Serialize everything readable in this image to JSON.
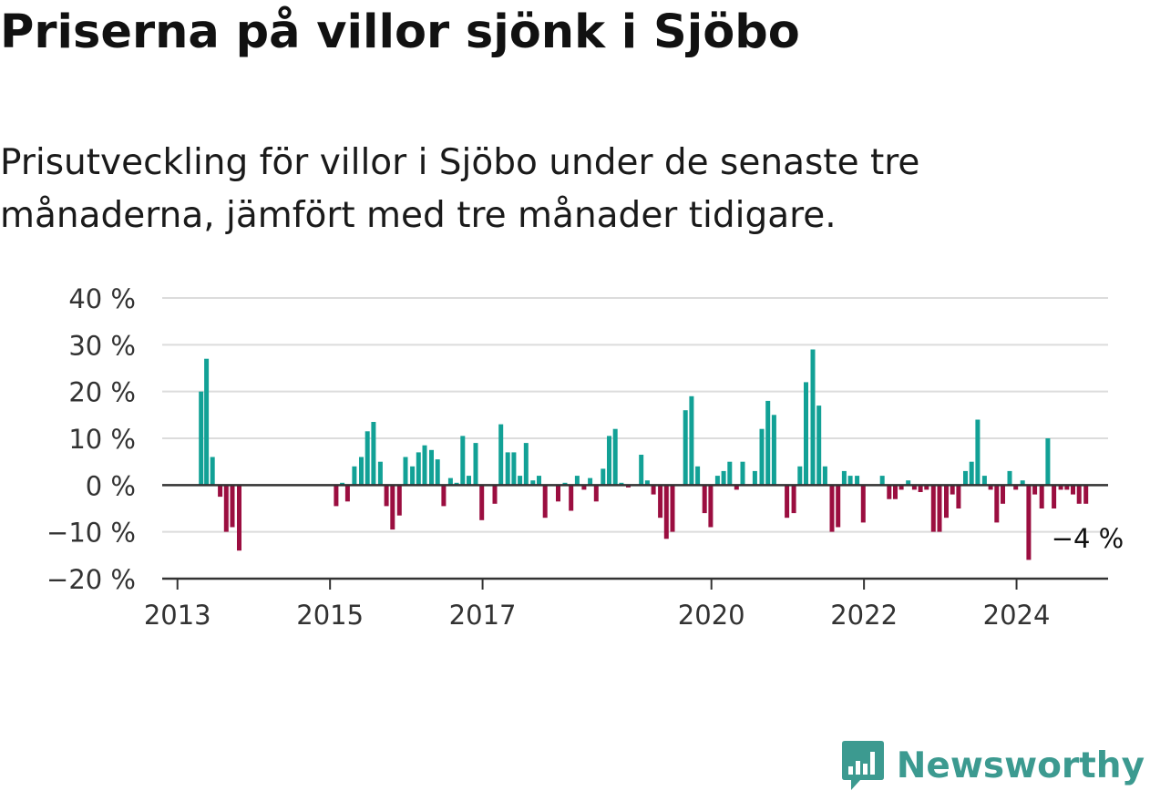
{
  "title": "Priserna på villor sjönk i Sjöbo",
  "subtitle": "Prisutveckling för villor i Sjöbo under de senaste tre månaderna, jämfört med tre månader tidigare.",
  "brand": {
    "name": "Newsworthy",
    "color": "#3c9a90"
  },
  "colors": {
    "positive": "#12a196",
    "negative": "#9b0e40",
    "grid": "#dcdcdc",
    "axis": "#333333",
    "text": "#333333"
  },
  "chart_data": {
    "type": "bar",
    "x_unit": "year (decimal)",
    "y_unit": "%",
    "ylim": [
      -20,
      40
    ],
    "xlim": [
      2012.8,
      2025.2
    ],
    "y_ticks": [
      {
        "value": 40,
        "label": "40 %"
      },
      {
        "value": 30,
        "label": "30 %"
      },
      {
        "value": 20,
        "label": "20 %"
      },
      {
        "value": 10,
        "label": "10 %"
      },
      {
        "value": 0,
        "label": "0 %"
      },
      {
        "value": -10,
        "label": "−10 %"
      },
      {
        "value": -20,
        "label": "−20 %"
      }
    ],
    "x_ticks": [
      {
        "value": 2013,
        "label": "2013"
      },
      {
        "value": 2015,
        "label": "2015"
      },
      {
        "value": 2017,
        "label": "2017"
      },
      {
        "value": 2020,
        "label": "2020"
      },
      {
        "value": 2022,
        "label": "2022"
      },
      {
        "value": 2024,
        "label": "2024"
      }
    ],
    "grid": true,
    "annotation": {
      "label": "−4 %",
      "value": -4
    },
    "points": [
      {
        "x": 2013.31,
        "y": 20
      },
      {
        "x": 2013.38,
        "y": 27
      },
      {
        "x": 2013.46,
        "y": 6
      },
      {
        "x": 2013.56,
        "y": -2.5
      },
      {
        "x": 2013.64,
        "y": -10
      },
      {
        "x": 2013.72,
        "y": -9
      },
      {
        "x": 2013.81,
        "y": -14
      },
      {
        "x": 2015.08,
        "y": -4.5
      },
      {
        "x": 2015.16,
        "y": 0.5
      },
      {
        "x": 2015.23,
        "y": -3.5
      },
      {
        "x": 2015.32,
        "y": 4
      },
      {
        "x": 2015.41,
        "y": 6
      },
      {
        "x": 2015.49,
        "y": 11.5
      },
      {
        "x": 2015.57,
        "y": 13.5
      },
      {
        "x": 2015.66,
        "y": 5
      },
      {
        "x": 2015.74,
        "y": -4.5
      },
      {
        "x": 2015.82,
        "y": -9.5
      },
      {
        "x": 2015.91,
        "y": -6.5
      },
      {
        "x": 2015.99,
        "y": 6
      },
      {
        "x": 2016.08,
        "y": 4
      },
      {
        "x": 2016.16,
        "y": 7
      },
      {
        "x": 2016.24,
        "y": 8.5
      },
      {
        "x": 2016.33,
        "y": 7.5
      },
      {
        "x": 2016.41,
        "y": 5.5
      },
      {
        "x": 2016.49,
        "y": -4.5
      },
      {
        "x": 2016.58,
        "y": 1.5
      },
      {
        "x": 2016.66,
        "y": 0.5
      },
      {
        "x": 2016.74,
        "y": 10.5
      },
      {
        "x": 2016.82,
        "y": 2
      },
      {
        "x": 2016.91,
        "y": 9
      },
      {
        "x": 2016.99,
        "y": -7.5
      },
      {
        "x": 2017.16,
        "y": -4
      },
      {
        "x": 2017.24,
        "y": 13
      },
      {
        "x": 2017.33,
        "y": 7
      },
      {
        "x": 2017.41,
        "y": 7
      },
      {
        "x": 2017.49,
        "y": 2
      },
      {
        "x": 2017.57,
        "y": 9
      },
      {
        "x": 2017.66,
        "y": 1
      },
      {
        "x": 2017.74,
        "y": 2
      },
      {
        "x": 2017.82,
        "y": -7
      },
      {
        "x": 2017.99,
        "y": -3.5
      },
      {
        "x": 2018.08,
        "y": 0.5
      },
      {
        "x": 2018.16,
        "y": -5.5
      },
      {
        "x": 2018.24,
        "y": 2
      },
      {
        "x": 2018.33,
        "y": -1
      },
      {
        "x": 2018.41,
        "y": 1.5
      },
      {
        "x": 2018.49,
        "y": -3.5
      },
      {
        "x": 2018.58,
        "y": 3.5
      },
      {
        "x": 2018.66,
        "y": 10.5
      },
      {
        "x": 2018.74,
        "y": 12
      },
      {
        "x": 2018.82,
        "y": 0.5
      },
      {
        "x": 2018.91,
        "y": -0.5
      },
      {
        "x": 2019.08,
        "y": 6.5
      },
      {
        "x": 2019.16,
        "y": 1
      },
      {
        "x": 2019.24,
        "y": -2
      },
      {
        "x": 2019.33,
        "y": -7
      },
      {
        "x": 2019.41,
        "y": -11.5
      },
      {
        "x": 2019.49,
        "y": -10
      },
      {
        "x": 2019.66,
        "y": 16
      },
      {
        "x": 2019.74,
        "y": 19
      },
      {
        "x": 2019.82,
        "y": 4
      },
      {
        "x": 2019.91,
        "y": -6
      },
      {
        "x": 2019.99,
        "y": -9
      },
      {
        "x": 2020.08,
        "y": 2
      },
      {
        "x": 2020.16,
        "y": 3
      },
      {
        "x": 2020.24,
        "y": 5
      },
      {
        "x": 2020.33,
        "y": -1
      },
      {
        "x": 2020.41,
        "y": 5
      },
      {
        "x": 2020.57,
        "y": 3
      },
      {
        "x": 2020.66,
        "y": 12
      },
      {
        "x": 2020.74,
        "y": 18
      },
      {
        "x": 2020.82,
        "y": 15
      },
      {
        "x": 2020.99,
        "y": -7
      },
      {
        "x": 2021.08,
        "y": -6
      },
      {
        "x": 2021.16,
        "y": 4
      },
      {
        "x": 2021.24,
        "y": 22
      },
      {
        "x": 2021.33,
        "y": 29
      },
      {
        "x": 2021.41,
        "y": 17
      },
      {
        "x": 2021.49,
        "y": 4
      },
      {
        "x": 2021.58,
        "y": -10
      },
      {
        "x": 2021.66,
        "y": -9
      },
      {
        "x": 2021.74,
        "y": 3
      },
      {
        "x": 2021.82,
        "y": 2
      },
      {
        "x": 2021.91,
        "y": 2
      },
      {
        "x": 2021.99,
        "y": -8
      },
      {
        "x": 2022.24,
        "y": 2
      },
      {
        "x": 2022.33,
        "y": -3
      },
      {
        "x": 2022.41,
        "y": -3
      },
      {
        "x": 2022.49,
        "y": -1
      },
      {
        "x": 2022.58,
        "y": 1
      },
      {
        "x": 2022.66,
        "y": -1
      },
      {
        "x": 2022.74,
        "y": -1.5
      },
      {
        "x": 2022.82,
        "y": -1
      },
      {
        "x": 2022.91,
        "y": -10
      },
      {
        "x": 2022.99,
        "y": -10
      },
      {
        "x": 2023.08,
        "y": -7
      },
      {
        "x": 2023.16,
        "y": -2
      },
      {
        "x": 2023.24,
        "y": -5
      },
      {
        "x": 2023.33,
        "y": 3
      },
      {
        "x": 2023.41,
        "y": 5
      },
      {
        "x": 2023.49,
        "y": 14
      },
      {
        "x": 2023.58,
        "y": 2
      },
      {
        "x": 2023.66,
        "y": -1
      },
      {
        "x": 2023.74,
        "y": -8
      },
      {
        "x": 2023.82,
        "y": -4
      },
      {
        "x": 2023.91,
        "y": 3
      },
      {
        "x": 2023.99,
        "y": -1
      },
      {
        "x": 2024.08,
        "y": 1
      },
      {
        "x": 2024.16,
        "y": -16
      },
      {
        "x": 2024.24,
        "y": -2
      },
      {
        "x": 2024.33,
        "y": -5
      },
      {
        "x": 2024.41,
        "y": 10
      },
      {
        "x": 2024.49,
        "y": -5
      },
      {
        "x": 2024.58,
        "y": -1
      },
      {
        "x": 2024.66,
        "y": -1
      },
      {
        "x": 2024.74,
        "y": -2
      },
      {
        "x": 2024.82,
        "y": -4
      },
      {
        "x": 2024.91,
        "y": -4
      }
    ]
  }
}
